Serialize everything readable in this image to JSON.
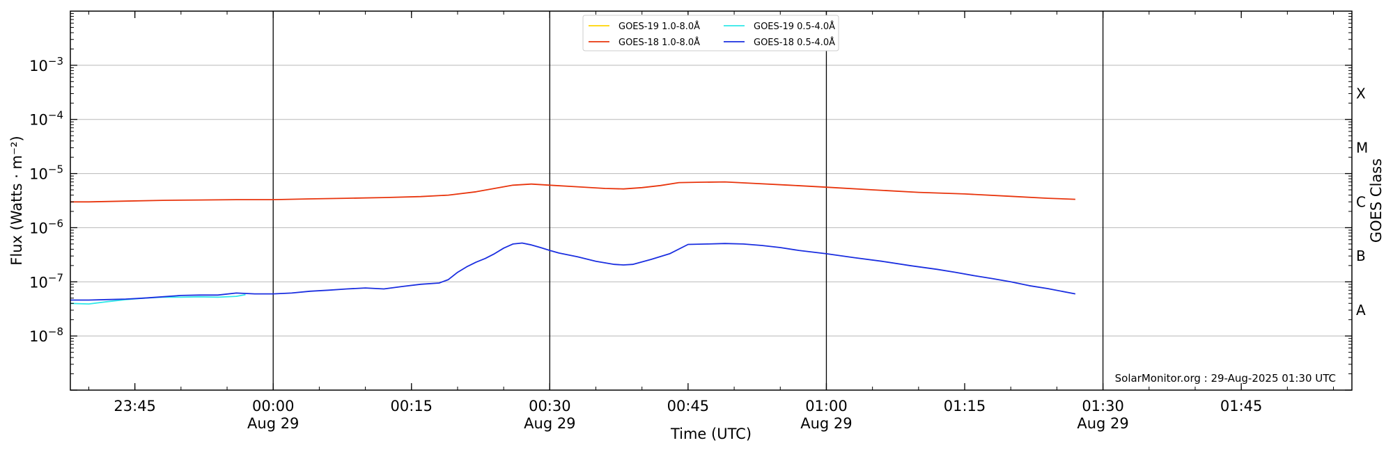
{
  "chart_data": {
    "type": "line",
    "title": "",
    "xlabel": "Time (UTC)",
    "ylabel": "Flux (Watts · m⁻²)",
    "y2label": "GOES Class",
    "yscale": "log",
    "ylim": [
      1e-09,
      0.01
    ],
    "xlim": [
      "2025-08-28 23:38",
      "2025-08-29 01:57"
    ],
    "grid": "horizontal",
    "legend_position": "top-center",
    "x_ticks": [
      {
        "time": "2025-08-28 23:45",
        "label": "23:45",
        "sublabel": ""
      },
      {
        "time": "2025-08-29 00:00",
        "label": "00:00",
        "sublabel": "Aug 29"
      },
      {
        "time": "2025-08-29 00:15",
        "label": "00:15",
        "sublabel": ""
      },
      {
        "time": "2025-08-29 00:30",
        "label": "00:30",
        "sublabel": "Aug 29"
      },
      {
        "time": "2025-08-29 00:45",
        "label": "00:45",
        "sublabel": ""
      },
      {
        "time": "2025-08-29 01:00",
        "label": "01:00",
        "sublabel": "Aug 29"
      },
      {
        "time": "2025-08-29 01:15",
        "label": "01:15",
        "sublabel": ""
      },
      {
        "time": "2025-08-29 01:30",
        "label": "01:30",
        "sublabel": "Aug 29"
      },
      {
        "time": "2025-08-29 01:45",
        "label": "01:45",
        "sublabel": ""
      }
    ],
    "vertical_lines": [
      "2025-08-29 00:00",
      "2025-08-29 00:30",
      "2025-08-29 01:00",
      "2025-08-29 01:30"
    ],
    "y_ticks": [
      {
        "value": 1e-08,
        "base": "10",
        "exp": "−8"
      },
      {
        "value": 1e-07,
        "base": "10",
        "exp": "−7"
      },
      {
        "value": 1e-06,
        "base": "10",
        "exp": "−6"
      },
      {
        "value": 1e-05,
        "base": "10",
        "exp": "−5"
      },
      {
        "value": 0.0001,
        "base": "10",
        "exp": "−4"
      },
      {
        "value": 0.001,
        "base": "10",
        "exp": "−3"
      }
    ],
    "goes_classes": [
      {
        "label": "A",
        "value": 3e-08
      },
      {
        "label": "B",
        "value": 3e-07
      },
      {
        "label": "C",
        "value": 3e-06
      },
      {
        "label": "M",
        "value": 3e-05
      },
      {
        "label": "X",
        "value": 0.0003
      }
    ],
    "series": [
      {
        "name": "GOES-19 1.0-8.0Å",
        "color": "#FFD500",
        "x": [],
        "values": []
      },
      {
        "name": "GOES-19 0.5-4.0Å",
        "color": "#2FE8E8",
        "x": [
          "2025-08-28 23:38",
          "2025-08-28 23:40",
          "2025-08-28 23:42",
          "2025-08-28 23:44",
          "2025-08-28 23:46",
          "2025-08-28 23:48",
          "2025-08-28 23:50",
          "2025-08-28 23:52",
          "2025-08-28 23:54",
          "2025-08-28 23:56",
          "2025-08-28 23:57"
        ],
        "values": [
          4e-08,
          3.9e-08,
          4.3e-08,
          4.7e-08,
          5e-08,
          5.2e-08,
          5.2e-08,
          5.3e-08,
          5.2e-08,
          5.4e-08,
          5.8e-08
        ]
      },
      {
        "name": "GOES-18 1.0-8.0Å",
        "color": "#E8340C",
        "x": [
          "2025-08-28 23:38",
          "2025-08-28 23:40",
          "2025-08-28 23:44",
          "2025-08-28 23:48",
          "2025-08-28 23:52",
          "2025-08-28 23:56",
          "2025-08-29 00:00",
          "2025-08-29 00:04",
          "2025-08-29 00:08",
          "2025-08-29 00:12",
          "2025-08-29 00:16",
          "2025-08-29 00:19",
          "2025-08-29 00:22",
          "2025-08-29 00:24",
          "2025-08-29 00:26",
          "2025-08-29 00:28",
          "2025-08-29 00:30",
          "2025-08-29 00:33",
          "2025-08-29 00:36",
          "2025-08-29 00:38",
          "2025-08-29 00:40",
          "2025-08-29 00:42",
          "2025-08-29 00:44",
          "2025-08-29 00:46",
          "2025-08-29 00:49",
          "2025-08-29 00:52",
          "2025-08-29 00:56",
          "2025-08-29 01:00",
          "2025-08-29 01:05",
          "2025-08-29 01:10",
          "2025-08-29 01:15",
          "2025-08-29 01:20",
          "2025-08-29 01:24",
          "2025-08-29 01:27"
        ],
        "values": [
          3e-06,
          3e-06,
          3.1e-06,
          3.2e-06,
          3.25e-06,
          3.3e-06,
          3.3e-06,
          3.4e-06,
          3.5e-06,
          3.6e-06,
          3.75e-06,
          4e-06,
          4.6e-06,
          5.3e-06,
          6.1e-06,
          6.4e-06,
          6.1e-06,
          5.7e-06,
          5.3e-06,
          5.2e-06,
          5.5e-06,
          6e-06,
          6.8e-06,
          6.9e-06,
          7e-06,
          6.6e-06,
          6.1e-06,
          5.6e-06,
          5e-06,
          4.5e-06,
          4.2e-06,
          3.8e-06,
          3.5e-06,
          3.35e-06
        ]
      },
      {
        "name": "GOES-18 0.5-4.0Å",
        "color": "#1A2EE0",
        "x": [
          "2025-08-28 23:38",
          "2025-08-28 23:40",
          "2025-08-28 23:42",
          "2025-08-28 23:44",
          "2025-08-28 23:46",
          "2025-08-28 23:48",
          "2025-08-28 23:50",
          "2025-08-28 23:52",
          "2025-08-28 23:54",
          "2025-08-28 23:56",
          "2025-08-28 23:58",
          "2025-08-29 00:00",
          "2025-08-29 00:02",
          "2025-08-29 00:04",
          "2025-08-29 00:06",
          "2025-08-29 00:08",
          "2025-08-29 00:10",
          "2025-08-29 00:12",
          "2025-08-29 00:14",
          "2025-08-29 00:16",
          "2025-08-29 00:18",
          "2025-08-29 00:19",
          "2025-08-29 00:20",
          "2025-08-29 00:21",
          "2025-08-29 00:22",
          "2025-08-29 00:23",
          "2025-08-29 00:24",
          "2025-08-29 00:25",
          "2025-08-29 00:26",
          "2025-08-29 00:27",
          "2025-08-29 00:28",
          "2025-08-29 00:29",
          "2025-08-29 00:30",
          "2025-08-29 00:31",
          "2025-08-29 00:33",
          "2025-08-29 00:35",
          "2025-08-29 00:37",
          "2025-08-29 00:38",
          "2025-08-29 00:39",
          "2025-08-29 00:41",
          "2025-08-29 00:43",
          "2025-08-29 00:45",
          "2025-08-29 00:47",
          "2025-08-29 00:49",
          "2025-08-29 00:51",
          "2025-08-29 00:53",
          "2025-08-29 00:55",
          "2025-08-29 00:57",
          "2025-08-29 01:00",
          "2025-08-29 01:03",
          "2025-08-29 01:06",
          "2025-08-29 01:09",
          "2025-08-29 01:12",
          "2025-08-29 01:14",
          "2025-08-29 01:16",
          "2025-08-29 01:18",
          "2025-08-29 01:20",
          "2025-08-29 01:22",
          "2025-08-29 01:24",
          "2025-08-29 01:27"
        ],
        "values": [
          4.6e-08,
          4.6e-08,
          4.7e-08,
          4.8e-08,
          5e-08,
          5.3e-08,
          5.6e-08,
          5.7e-08,
          5.7e-08,
          6.2e-08,
          6e-08,
          6e-08,
          6.2e-08,
          6.7e-08,
          7e-08,
          7.4e-08,
          7.7e-08,
          7.4e-08,
          8.2e-08,
          9e-08,
          9.5e-08,
          1.1e-07,
          1.5e-07,
          1.9e-07,
          2.3e-07,
          2.7e-07,
          3.3e-07,
          4.2e-07,
          5e-07,
          5.2e-07,
          4.8e-07,
          4.3e-07,
          3.8e-07,
          3.4e-07,
          2.9e-07,
          2.4e-07,
          2.1e-07,
          2.05e-07,
          2.1e-07,
          2.6e-07,
          3.3e-07,
          4.9e-07,
          5e-07,
          5.1e-07,
          5e-07,
          4.7e-07,
          4.3e-07,
          3.8e-07,
          3.3e-07,
          2.8e-07,
          2.4e-07,
          2e-07,
          1.7e-07,
          1.5e-07,
          1.3e-07,
          1.15e-07,
          1e-07,
          8.5e-08,
          7.5e-08,
          6e-08
        ]
      }
    ],
    "annotation": "SolarMonitor.org : 29-Aug-2025 01:30 UTC"
  }
}
